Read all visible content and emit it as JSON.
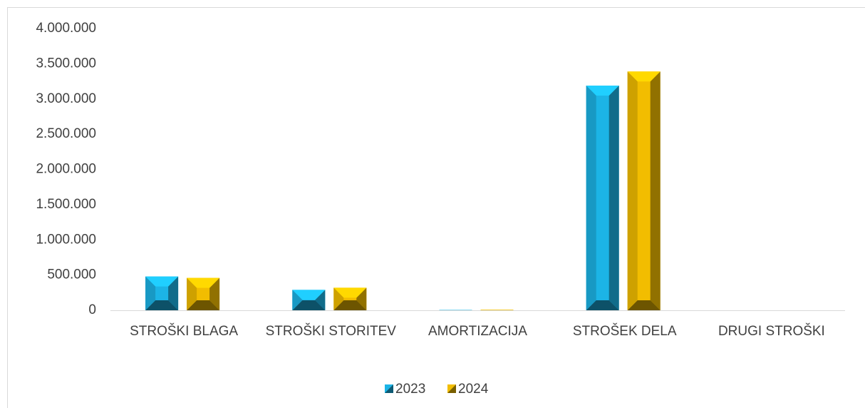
{
  "chart_data": {
    "type": "bar",
    "categories": [
      "STROŠKI BLAGA",
      "STROŠKI STORITEV",
      "AMORTIZACIJA",
      "STROŠEK DELA",
      "DRUGI STROŠKI"
    ],
    "series": [
      {
        "name": "2023",
        "color": "#1cb4e6",
        "values": [
          480000,
          290000,
          5000,
          3190000,
          0
        ]
      },
      {
        "name": "2024",
        "color": "#f2bd00",
        "values": [
          460000,
          320000,
          8000,
          3390000,
          0
        ]
      }
    ],
    "ylim": [
      0,
      4000000
    ],
    "yticks": [
      0,
      {
        "value": 500000,
        "label": "500.000"
      },
      {
        "value": 1000000,
        "label": "1.000.000"
      },
      {
        "value": 1500000,
        "label": "1.500.000"
      },
      {
        "value": 2000000,
        "label": "2.000.000"
      },
      {
        "value": 2500000,
        "label": "2.500.000"
      },
      {
        "value": 3000000,
        "label": "3.000.000"
      },
      {
        "value": 3500000,
        "label": "3.500.000"
      },
      {
        "value": 4000000,
        "label": "4.000.000"
      }
    ],
    "grid": false,
    "legend": "bottom"
  }
}
